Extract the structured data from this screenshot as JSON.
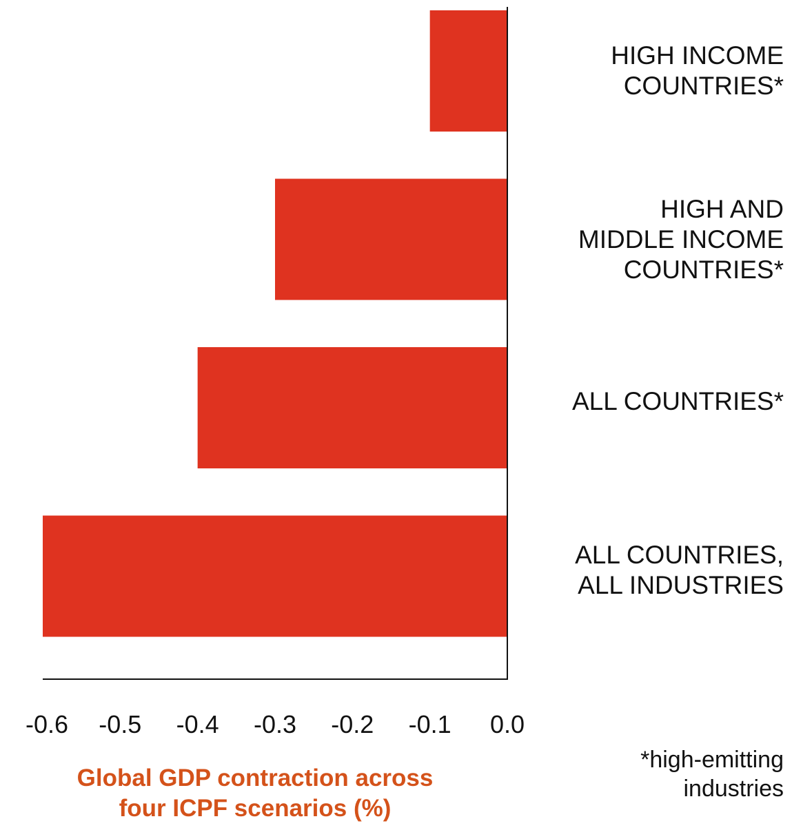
{
  "chart_data": {
    "type": "bar",
    "orientation": "horizontal",
    "categories": [
      "HIGH INCOME\nCOUNTRIES*",
      "HIGH AND\nMIDDLE INCOME\nCOUNTRIES*",
      "ALL COUNTRIES*",
      "ALL COUNTRIES,\nALL INDUSTRIES"
    ],
    "values": [
      -0.1,
      -0.3,
      -0.4,
      -0.6
    ],
    "xticks": [
      "-0.6",
      "-0.5",
      "-0.4",
      "-0.3",
      "-0.2",
      "-0.1",
      "0.0"
    ],
    "xlim": [
      -0.6,
      0.0
    ],
    "xlabel": "Global GDP contraction across\nfour ICPF scenarios (%)",
    "footnote": "*high-emitting\nindustries",
    "grid": false,
    "legend": "none",
    "colors": {
      "bar": "#df3320",
      "xlabel": "#d4521a",
      "axis": "#111111"
    }
  }
}
